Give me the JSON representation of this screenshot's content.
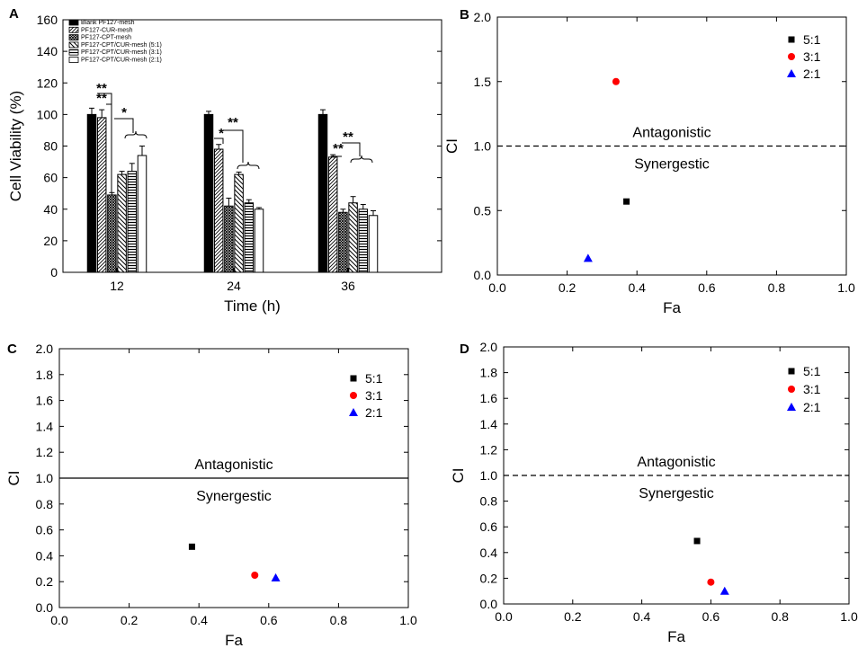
{
  "chart_data": [
    {
      "panel": "A",
      "type": "bar",
      "xlabel": "Time (h)",
      "ylabel": "Cell Viability (%)",
      "ylim": [
        0,
        160
      ],
      "yticks": [
        0,
        20,
        40,
        60,
        80,
        100,
        120,
        140,
        160
      ],
      "categories": [
        "12",
        "24",
        "36"
      ],
      "series": [
        {
          "name": "Blank PF127-mesh",
          "pattern": "solid",
          "values": [
            100,
            100,
            100
          ],
          "errors": [
            4,
            2,
            3
          ]
        },
        {
          "name": "PF127-CUR-mesh",
          "pattern": "diag-forward",
          "values": [
            98,
            78,
            73
          ],
          "errors": [
            5,
            3,
            1.5
          ]
        },
        {
          "name": "PF127-CPT-mesh",
          "pattern": "cross",
          "values": [
            49,
            42,
            38
          ],
          "errors": [
            1.5,
            5,
            2
          ]
        },
        {
          "name": "PF127-CPT/CUR-mesh (5:1)",
          "pattern": "diag-back",
          "values": [
            62,
            62,
            44
          ],
          "errors": [
            2,
            1.5,
            4
          ]
        },
        {
          "name": "PF127-CPT/CUR-mesh (3:1)",
          "pattern": "horizontal",
          "values": [
            64,
            44,
            40
          ],
          "errors": [
            5,
            2,
            3
          ]
        },
        {
          "name": "PF127-CPT/CUR-mesh (2:1)",
          "pattern": "white",
          "values": [
            74,
            40,
            36
          ],
          "errors": [
            6,
            1,
            3
          ]
        }
      ],
      "significance": [
        {
          "group": "12",
          "label": "**"
        },
        {
          "group": "12",
          "label": "**"
        },
        {
          "group": "12",
          "label": "*"
        },
        {
          "group": "24",
          "label": "*"
        },
        {
          "group": "24",
          "label": "**"
        },
        {
          "group": "36",
          "label": "**"
        },
        {
          "group": "36",
          "label": "**"
        }
      ]
    },
    {
      "panel": "B",
      "type": "scatter",
      "xlabel": "Fa",
      "ylabel": "CI",
      "xlim": [
        0,
        1
      ],
      "ylim": [
        0,
        2
      ],
      "xticks": [
        "0.0",
        "0.2",
        "0.4",
        "0.6",
        "0.8",
        "1.0"
      ],
      "yticks": [
        "0.0",
        "0.5",
        "1.0",
        "1.5",
        "2.0"
      ],
      "reference_line": {
        "y": 1.0,
        "style": "dashed"
      },
      "annotations": [
        "Antagonistic",
        "Synergestic"
      ],
      "series": [
        {
          "name": "5:1",
          "marker": "square",
          "color": "#000000",
          "x": 0.37,
          "y": 0.57
        },
        {
          "name": "3:1",
          "marker": "circle",
          "color": "#ff0000",
          "x": 0.34,
          "y": 1.5
        },
        {
          "name": "2:1",
          "marker": "triangle",
          "color": "#0000ff",
          "x": 0.26,
          "y": 0.13
        }
      ]
    },
    {
      "panel": "C",
      "type": "scatter",
      "xlabel": "Fa",
      "ylabel": "CI",
      "xlim": [
        0,
        1
      ],
      "ylim": [
        0,
        2
      ],
      "xticks": [
        "0.0",
        "0.2",
        "0.4",
        "0.6",
        "0.8",
        "1.0"
      ],
      "yticks": [
        "0.0",
        "0.2",
        "0.4",
        "0.6",
        "0.8",
        "1.0",
        "1.2",
        "1.4",
        "1.6",
        "1.8",
        "2.0"
      ],
      "reference_line": {
        "y": 1.0,
        "style": "solid"
      },
      "annotations": [
        "Antagonistic",
        "Synergestic"
      ],
      "series": [
        {
          "name": "5:1",
          "marker": "square",
          "color": "#000000",
          "x": 0.38,
          "y": 0.47
        },
        {
          "name": "3:1",
          "marker": "circle",
          "color": "#ff0000",
          "x": 0.56,
          "y": 0.25
        },
        {
          "name": "2:1",
          "marker": "triangle",
          "color": "#0000ff",
          "x": 0.62,
          "y": 0.23
        }
      ]
    },
    {
      "panel": "D",
      "type": "scatter",
      "xlabel": "Fa",
      "ylabel": "CI",
      "xlim": [
        0,
        1
      ],
      "ylim": [
        0,
        2
      ],
      "xticks": [
        "0.0",
        "0.2",
        "0.4",
        "0.6",
        "0.8",
        "1.0"
      ],
      "yticks": [
        "0.0",
        "0.2",
        "0.4",
        "0.6",
        "0.8",
        "1.0",
        "1.2",
        "1.4",
        "1.6",
        "1.8",
        "2.0"
      ],
      "reference_line": {
        "y": 1.0,
        "style": "dashed"
      },
      "annotations": [
        "Antagonistic",
        "Synergestic"
      ],
      "series": [
        {
          "name": "5:1",
          "marker": "square",
          "color": "#000000",
          "x": 0.56,
          "y": 0.49
        },
        {
          "name": "3:1",
          "marker": "circle",
          "color": "#ff0000",
          "x": 0.6,
          "y": 0.17
        },
        {
          "name": "2:1",
          "marker": "triangle",
          "color": "#0000ff",
          "x": 0.64,
          "y": 0.1
        }
      ]
    }
  ]
}
